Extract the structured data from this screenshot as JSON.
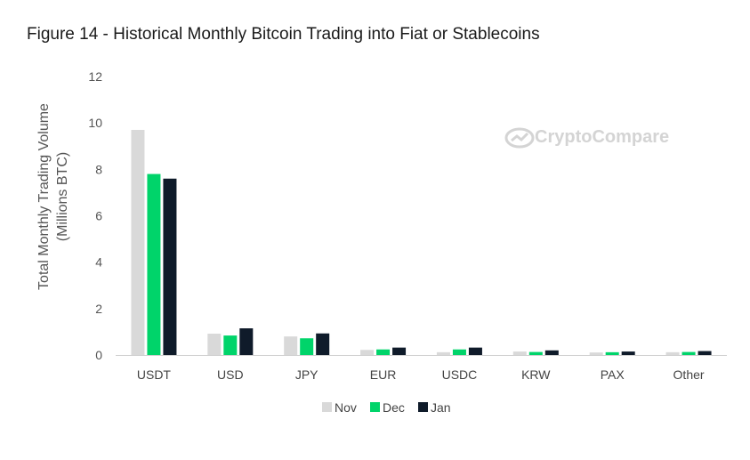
{
  "title": "Figure 14 - Historical Monthly Bitcoin Trading into Fiat or Stablecoins",
  "watermark": "CryptoCompare",
  "colors": {
    "Nov": "#d9d9d9",
    "Dec": "#00d46a",
    "Jan": "#0f1b2a"
  },
  "chart_data": {
    "type": "bar",
    "title": "Figure 14 - Historical Monthly Bitcoin Trading into Fiat or Stablecoins",
    "xlabel": "",
    "ylabel_lines": [
      "Total Monthly Trading Volume",
      "(Millions BTC)"
    ],
    "ylim": [
      0,
      12
    ],
    "yticks": [
      0,
      2,
      4,
      6,
      8,
      10,
      12
    ],
    "grid": false,
    "legend_position": "bottom",
    "categories": [
      "USDT",
      "USD",
      "JPY",
      "EUR",
      "USDC",
      "KRW",
      "PAX",
      "Other"
    ],
    "series": [
      {
        "name": "Nov",
        "values": [
          9.7,
          0.92,
          0.8,
          0.22,
          0.12,
          0.15,
          0.11,
          0.12
        ]
      },
      {
        "name": "Dec",
        "values": [
          7.8,
          0.84,
          0.72,
          0.24,
          0.24,
          0.13,
          0.12,
          0.13
        ]
      },
      {
        "name": "Jan",
        "values": [
          7.6,
          1.15,
          0.93,
          0.32,
          0.32,
          0.2,
          0.15,
          0.17
        ]
      }
    ]
  }
}
